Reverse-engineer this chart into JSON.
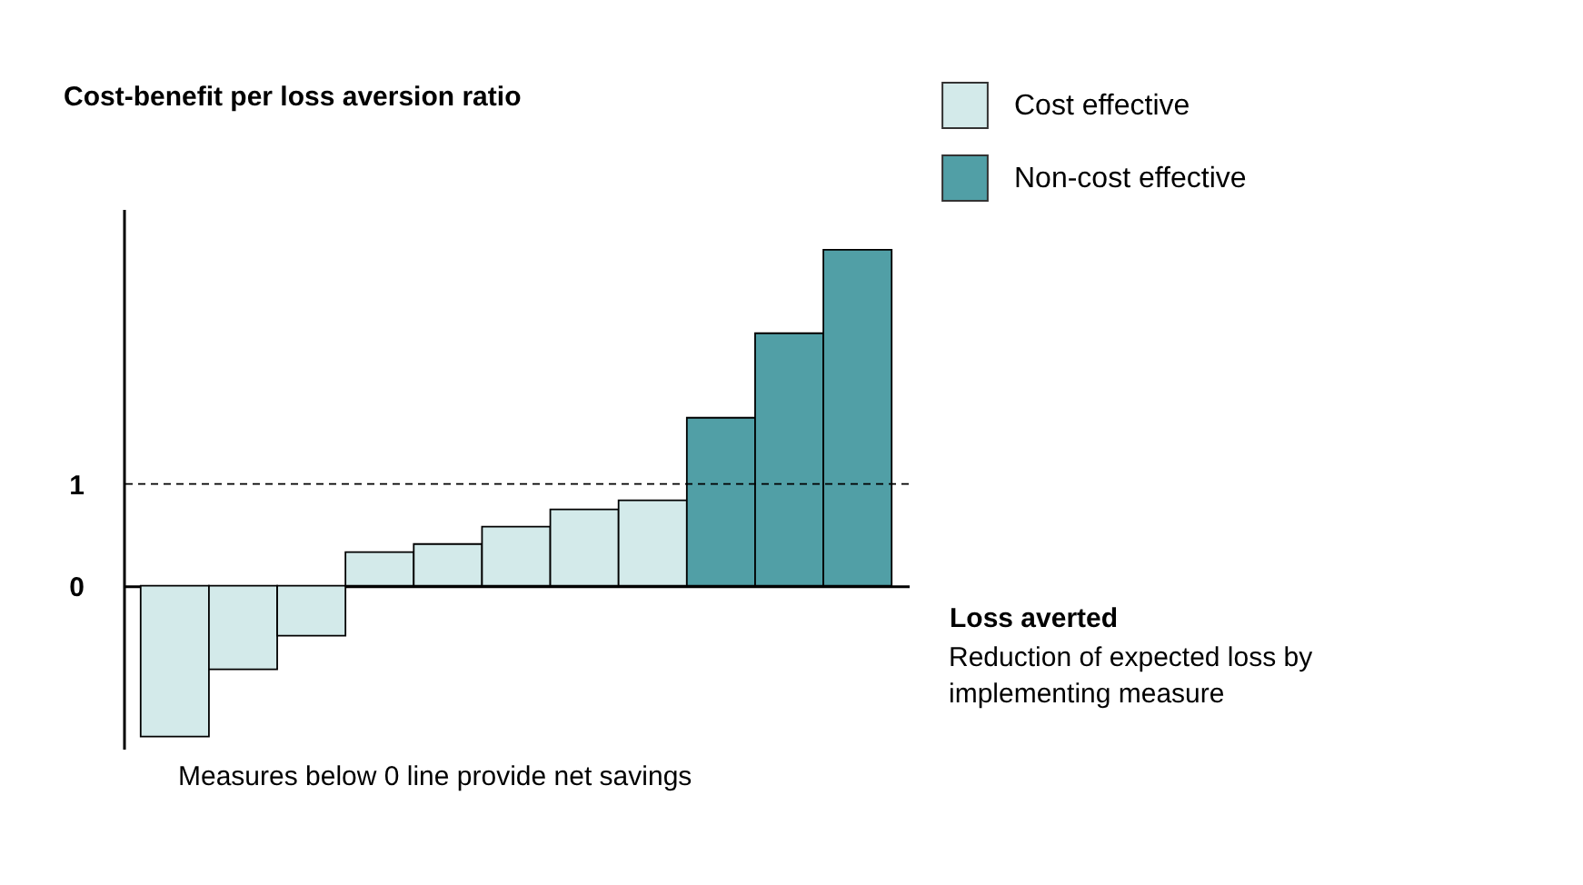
{
  "chart_data": {
    "type": "bar",
    "title": "Cost-benefit per loss aversion ratio",
    "xlabel": "Loss averted",
    "annotations": [
      "Reduction of expected loss by implementing measure",
      "Measures below 0 line provide net savings"
    ],
    "categories": [
      null,
      null,
      null,
      null,
      null,
      null,
      null,
      null,
      null,
      null,
      null
    ],
    "series": [
      {
        "name": "Cost effective",
        "color": "#d3eaea",
        "values": [
          -1.48,
          -0.82,
          -0.49,
          0.33,
          0.41,
          0.58,
          0.75,
          0.84,
          null,
          null,
          null
        ]
      },
      {
        "name": "Non-cost effective",
        "color": "#519fa6",
        "values": [
          null,
          null,
          null,
          null,
          null,
          null,
          null,
          null,
          1.65,
          2.48,
          3.3
        ]
      }
    ],
    "ylim": [
      -1.6,
      3.7
    ],
    "yticks": [
      0,
      1
    ],
    "ref_lines": [
      {
        "axis": "y",
        "value": 1,
        "line_style": "dashed"
      }
    ],
    "legend": "top right"
  }
}
